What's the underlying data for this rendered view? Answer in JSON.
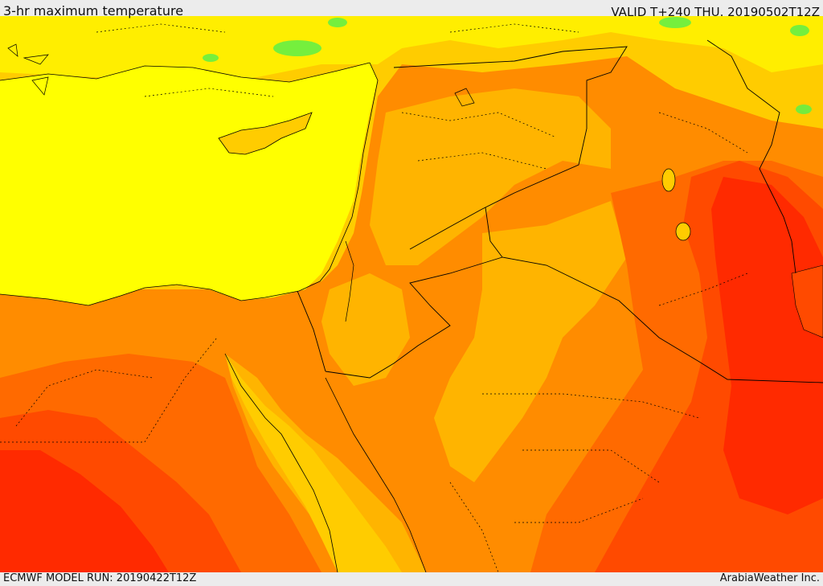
{
  "header": {
    "title": "3-hr maximum temperature",
    "valid": "VALID T+240 THU. 20190502T12Z"
  },
  "footer": {
    "model_run": "ECMWF MODEL RUN: 20190422T12Z",
    "credit": "ArabiaWeather Inc."
  },
  "colors": {
    "sea_yellow": "#ffff00",
    "light_yellow": "#ffee00",
    "gold": "#ffcc00",
    "amber": "#ffb400",
    "orange": "#ff8c00",
    "dark_orange": "#ff6a00",
    "red_orange": "#ff4a00",
    "red": "#ff2a00",
    "green": "#66ee44",
    "border": "#000000"
  }
}
